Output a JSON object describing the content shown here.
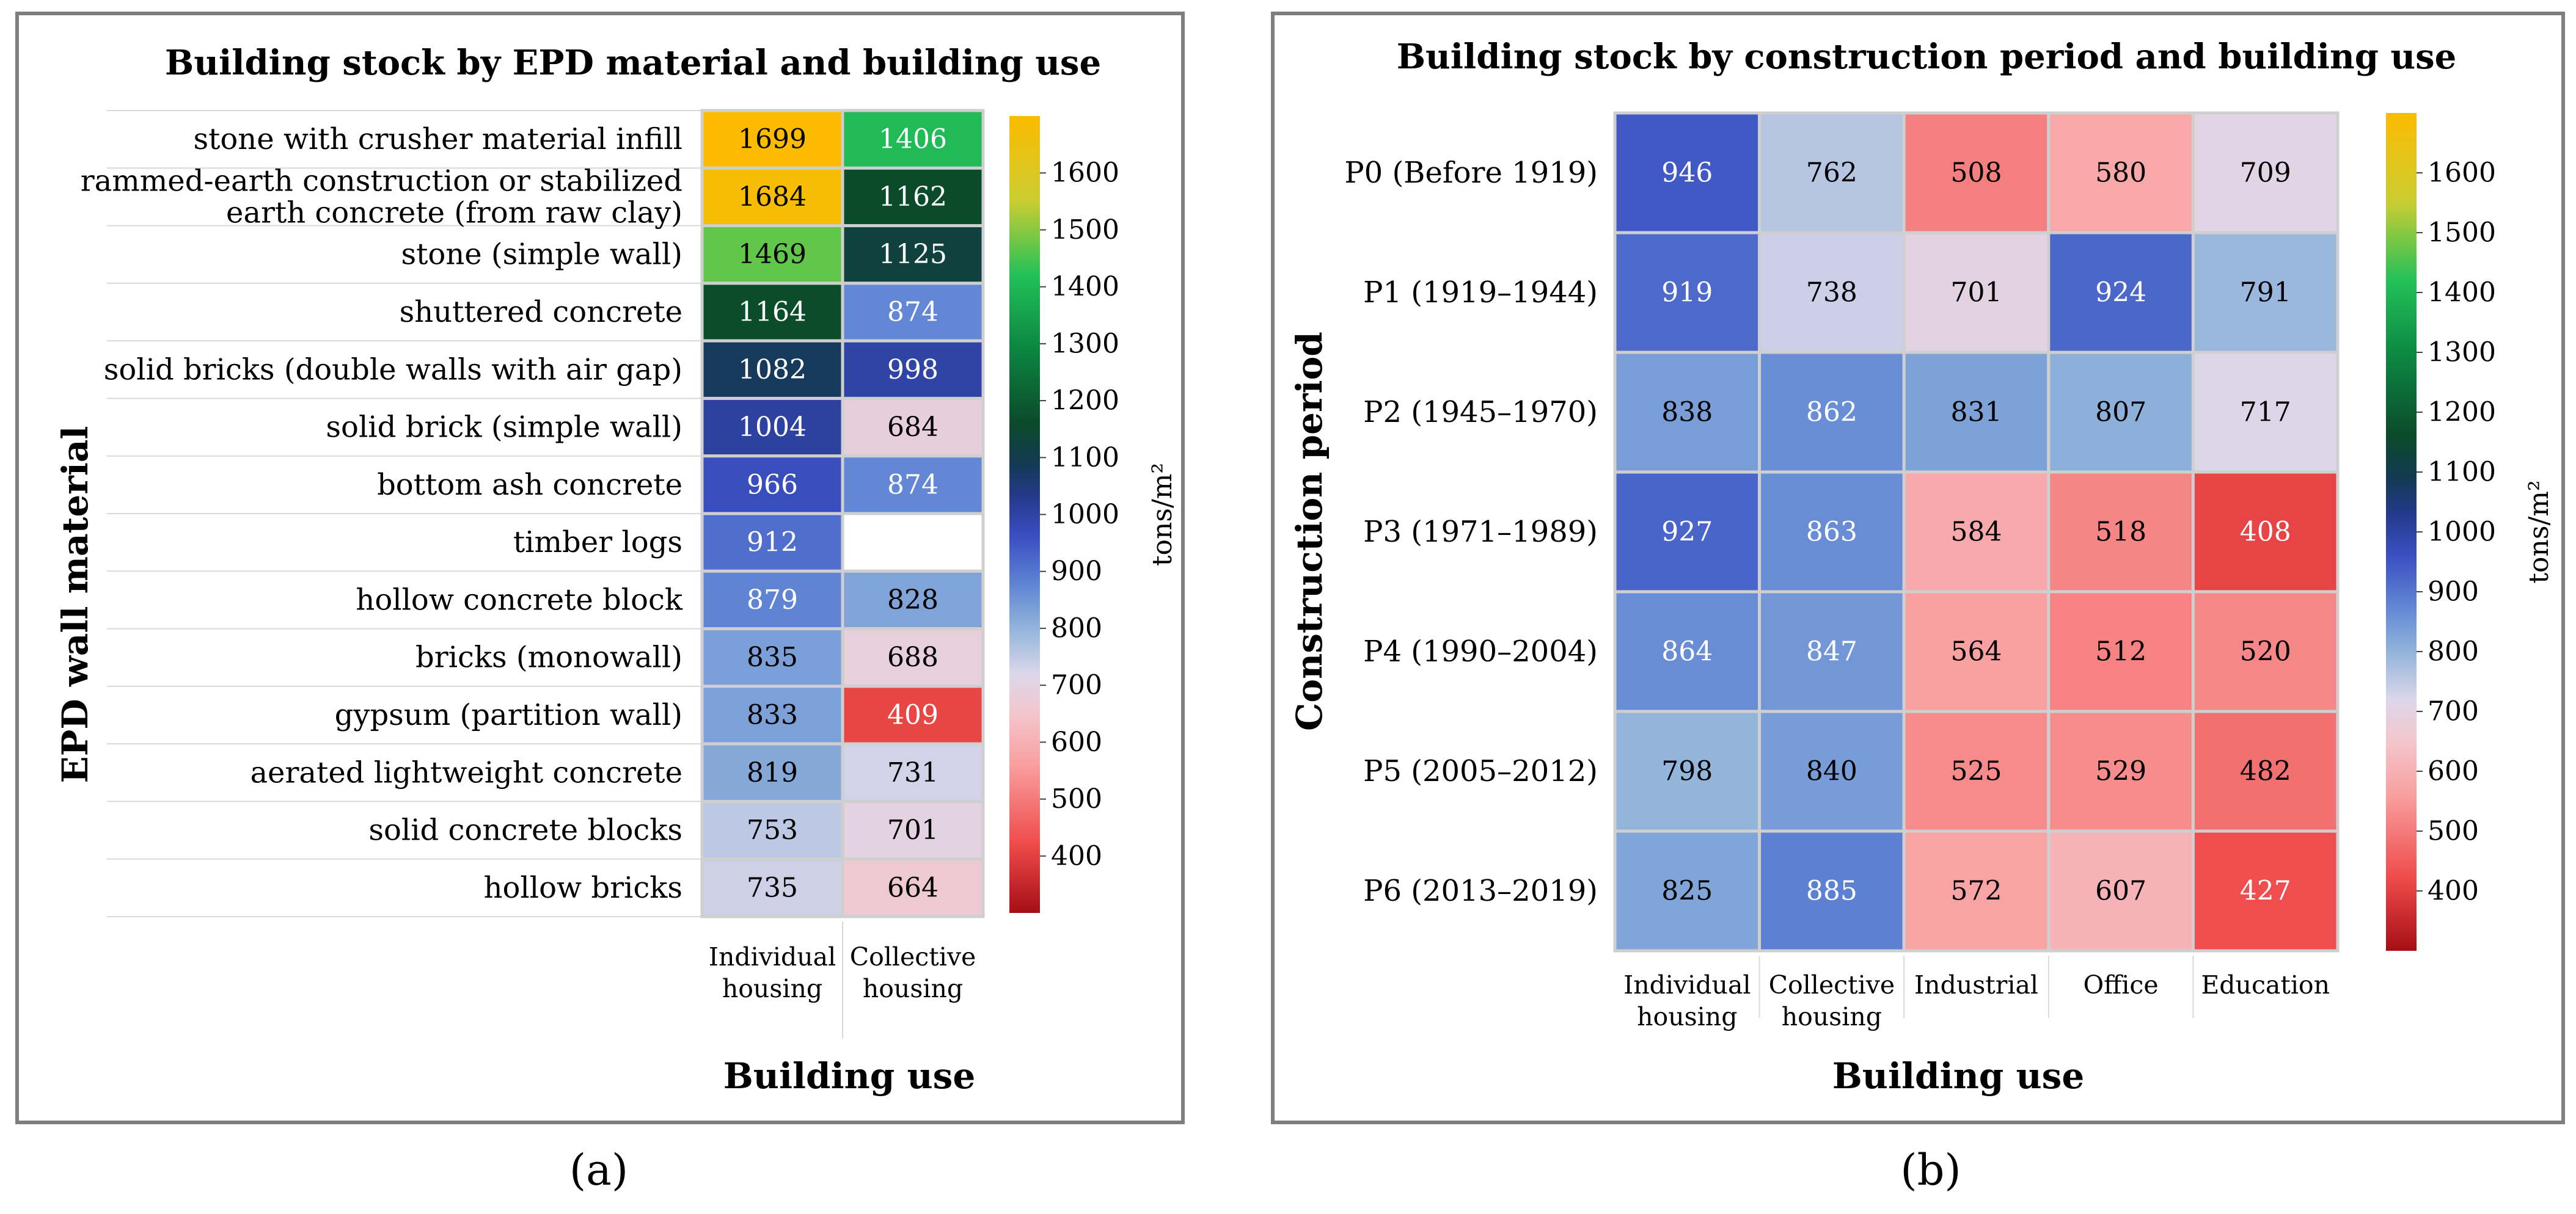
{
  "figure": {
    "panel_a_label": "(a)",
    "panel_b_label": "(b)"
  },
  "chart_data": [
    {
      "type": "heatmap",
      "title": "Building stock by EPD material and building use",
      "xlabel": "Building use",
      "ylabel": "EPD wall material",
      "colorbar_label": "tons/m²",
      "colorbar_range": [
        300,
        1700
      ],
      "colorbar_ticks": [
        400,
        500,
        600,
        700,
        800,
        900,
        1000,
        1100,
        1200,
        1300,
        1400,
        1500,
        1600
      ],
      "columns": [
        "Individual housing",
        "Collective housing"
      ],
      "rows": [
        "stone with crusher material infill",
        "rammed-earth construction or stabilized earth concrete (from raw clay)",
        "stone (simple wall)",
        "shuttered concrete",
        "solid bricks (double walls with air gap)",
        "solid brick (simple wall)",
        "bottom ash concrete",
        "timber logs",
        "hollow concrete block",
        "bricks (monowall)",
        "gypsum (partition wall)",
        "aerated lightweight concrete",
        "solid concrete blocks",
        "hollow bricks"
      ],
      "values": [
        [
          1699,
          1406
        ],
        [
          1684,
          1162
        ],
        [
          1469,
          1125
        ],
        [
          1164,
          874
        ],
        [
          1082,
          998
        ],
        [
          1004,
          684
        ],
        [
          966,
          874
        ],
        [
          912,
          null
        ],
        [
          879,
          828
        ],
        [
          835,
          688
        ],
        [
          833,
          409
        ],
        [
          819,
          731
        ],
        [
          753,
          701
        ],
        [
          735,
          664
        ]
      ]
    },
    {
      "type": "heatmap",
      "title": "Building stock by construction period and building use",
      "xlabel": "Building use",
      "ylabel": "Construction period",
      "colorbar_label": "tons/m²",
      "colorbar_range": [
        300,
        1700
      ],
      "colorbar_ticks": [
        400,
        500,
        600,
        700,
        800,
        900,
        1000,
        1100,
        1200,
        1300,
        1400,
        1500,
        1600
      ],
      "columns": [
        "Individual housing",
        "Collective housing",
        "Industrial",
        "Office",
        "Education"
      ],
      "rows": [
        "P0 (Before 1919)",
        "P1 (1919–1944)",
        "P2 (1945–1970)",
        "P3 (1971–1989)",
        "P4 (1990–2004)",
        "P5 (2005–2012)",
        "P6 (2013–2019)"
      ],
      "values": [
        [
          946,
          762,
          508,
          580,
          709
        ],
        [
          919,
          738,
          701,
          924,
          791
        ],
        [
          838,
          862,
          831,
          807,
          717
        ],
        [
          927,
          863,
          584,
          518,
          408
        ],
        [
          864,
          847,
          564,
          512,
          520
        ],
        [
          798,
          840,
          525,
          529,
          482
        ],
        [
          825,
          885,
          572,
          607,
          427
        ]
      ]
    }
  ],
  "colorscale": [
    [
      300,
      "#a50f15"
    ],
    [
      420,
      "#ef4a4a"
    ],
    [
      560,
      "#f99f9f"
    ],
    [
      650,
      "#f3c6cc"
    ],
    [
      720,
      "#dcd7ea"
    ],
    [
      800,
      "#92b4db"
    ],
    [
      880,
      "#5e83d3"
    ],
    [
      960,
      "#3b50c2"
    ],
    [
      1030,
      "#243a8c"
    ],
    [
      1090,
      "#133a53"
    ],
    [
      1160,
      "#0b4a2a"
    ],
    [
      1300,
      "#0d8a43"
    ],
    [
      1420,
      "#22c159"
    ],
    [
      1550,
      "#c9cd32"
    ],
    [
      1700,
      "#fdbb00"
    ]
  ]
}
